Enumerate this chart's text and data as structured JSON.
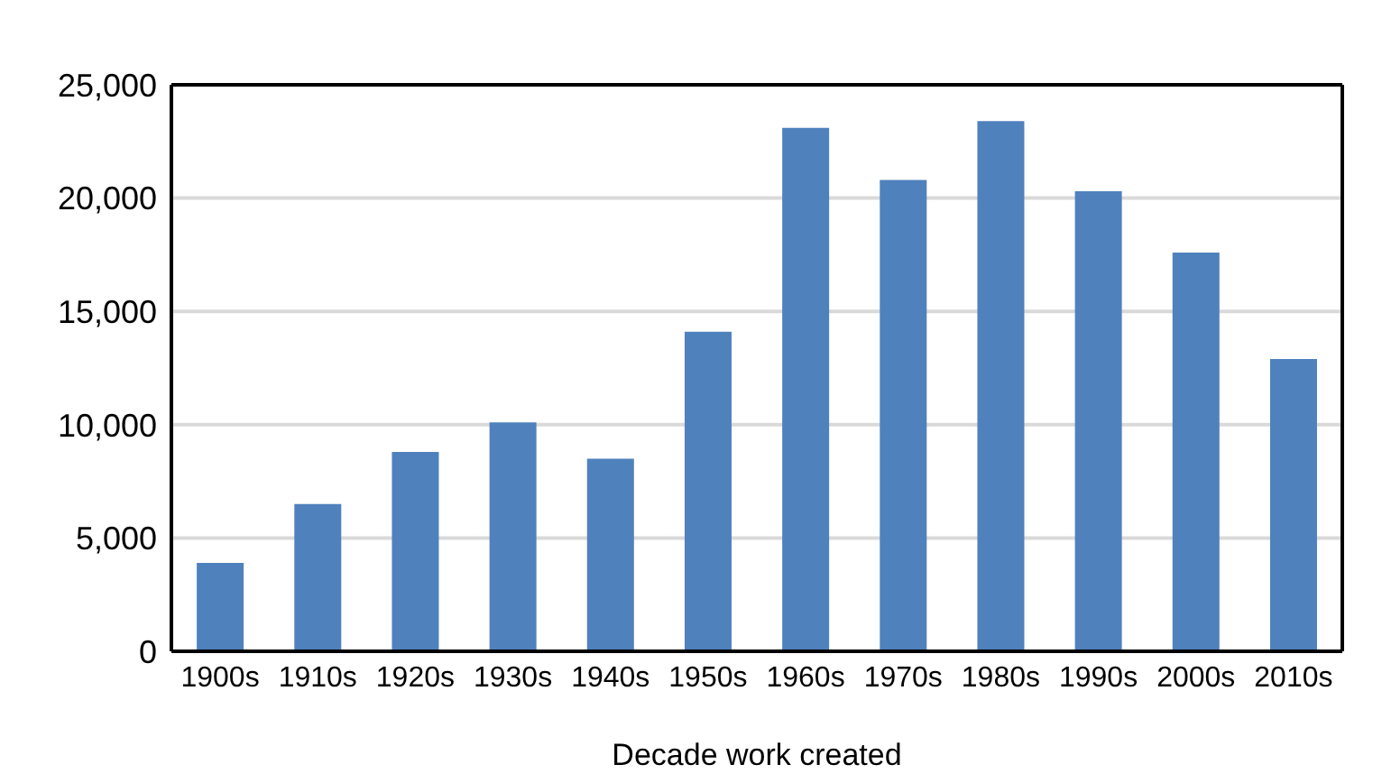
{
  "chart_data": {
    "type": "bar",
    "xlabel": "Decade work created",
    "categories": [
      "1900s",
      "1910s",
      "1920s",
      "1930s",
      "1940s",
      "1950s",
      "1960s",
      "1970s",
      "1980s",
      "1990s",
      "2000s",
      "2010s"
    ],
    "values": [
      3900,
      6500,
      8800,
      10100,
      8500,
      14100,
      23100,
      20800,
      23400,
      20300,
      17600,
      12900
    ],
    "color": "#4f81bd",
    "ylim": [
      0,
      25000
    ],
    "yticks": [
      0,
      {
        "value": 5000,
        "label": "5,000"
      },
      {
        "value": 10000,
        "label": "10,000"
      },
      {
        "value": 15000,
        "label": "15,000"
      },
      {
        "value": 20000,
        "label": "20,000"
      },
      {
        "value": 25000,
        "label": "25,000"
      }
    ],
    "grid": "y",
    "legend": false
  }
}
